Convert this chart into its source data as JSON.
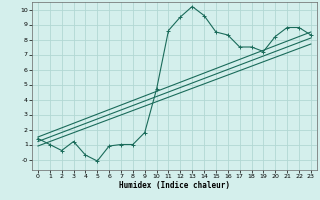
{
  "title": "",
  "xlabel": "Humidex (Indice chaleur)",
  "ylabel": "",
  "bg_color": "#d4efec",
  "grid_color": "#b2d8d3",
  "line_color": "#1a6b5a",
  "xlim": [
    -0.5,
    23.5
  ],
  "ylim": [
    -0.7,
    10.5
  ],
  "xticks": [
    0,
    1,
    2,
    3,
    4,
    5,
    6,
    7,
    8,
    9,
    10,
    11,
    12,
    13,
    14,
    15,
    16,
    17,
    18,
    19,
    20,
    21,
    22,
    23
  ],
  "yticks": [
    0,
    1,
    2,
    3,
    4,
    5,
    6,
    7,
    8,
    9,
    10
  ],
  "ytick_labels": [
    "-0",
    "1",
    "2",
    "3",
    "4",
    "5",
    "6",
    "7",
    "8",
    "9",
    "10"
  ],
  "curve1_x": [
    0,
    1,
    2,
    3,
    4,
    5,
    6,
    7,
    8,
    9,
    10,
    11,
    12,
    13,
    14,
    15,
    16,
    17,
    18,
    19,
    20,
    21,
    22,
    23
  ],
  "curve1_y": [
    1.4,
    1.0,
    0.6,
    1.2,
    0.3,
    -0.1,
    0.9,
    1.0,
    1.0,
    1.8,
    4.7,
    8.6,
    9.5,
    10.2,
    9.6,
    8.5,
    8.3,
    7.5,
    7.5,
    7.2,
    8.2,
    8.8,
    8.8,
    8.3
  ],
  "line1_x": [
    0,
    23
  ],
  "line1_y": [
    1.5,
    8.5
  ],
  "line2_x": [
    0,
    23
  ],
  "line2_y": [
    1.2,
    8.1
  ],
  "line3_x": [
    0,
    23
  ],
  "line3_y": [
    0.9,
    7.7
  ]
}
